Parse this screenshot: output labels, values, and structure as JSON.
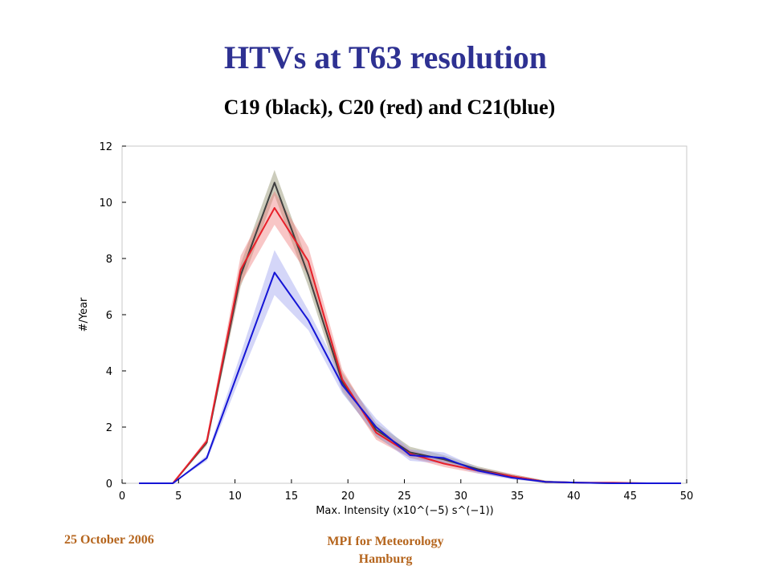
{
  "slide": {
    "title": "HTVs at T63 resolution",
    "subtitle": "C19 (black), C20 (red) and C21(blue)",
    "footer_date": "25 October 2006",
    "footer_org_line1": "MPI for Meteorology",
    "footer_org_line2": "Hamburg",
    "title_color": "#2e3192",
    "footer_color": "#b5651d"
  },
  "chart_data": {
    "type": "line",
    "title": "",
    "xlabel": "Max. Intensity (x10^(−5) s^(−1))",
    "ylabel": "#/Year",
    "xlim": [
      0,
      50
    ],
    "ylim": [
      0,
      12
    ],
    "xticks": [
      0,
      5,
      10,
      15,
      20,
      25,
      30,
      35,
      40,
      45,
      50
    ],
    "yticks": [
      0,
      2,
      4,
      6,
      8,
      10,
      12
    ],
    "grid": false,
    "x": [
      1.5,
      4.5,
      7.5,
      10.5,
      13.5,
      16.5,
      19.5,
      22.5,
      25.5,
      28.5,
      31.5,
      34.5,
      37.5,
      40.5,
      43.5,
      46.5,
      49.5
    ],
    "series": [
      {
        "color": "#404040",
        "band_color": "#8e8e6a",
        "values": [
          0,
          0,
          1.45,
          7.4,
          10.7,
          7.4,
          3.6,
          1.9,
          1.1,
          0.85,
          0.5,
          0.25,
          0.05,
          0.02,
          0.0,
          0.0,
          0.0
        ],
        "spread": [
          0,
          0,
          0.1,
          0.4,
          0.45,
          0.4,
          0.35,
          0.25,
          0.2,
          0.15,
          0.1,
          0.08,
          0.05,
          0.02,
          0.0,
          0.0,
          0.0
        ]
      },
      {
        "color": "#e8202a",
        "band_color": "#f08080",
        "values": [
          0,
          0,
          1.5,
          7.6,
          9.8,
          7.9,
          3.7,
          1.8,
          1.05,
          0.7,
          0.45,
          0.25,
          0.05,
          0.02,
          0.02,
          0.0,
          0.0
        ],
        "spread": [
          0,
          0,
          0.1,
          0.5,
          0.6,
          0.5,
          0.35,
          0.25,
          0.15,
          0.12,
          0.1,
          0.08,
          0.04,
          0.02,
          0.01,
          0.0,
          0.0
        ]
      },
      {
        "color": "#1515d6",
        "band_color": "#9fa3f0",
        "values": [
          0,
          0,
          0.9,
          4.2,
          7.5,
          5.8,
          3.5,
          2.0,
          1.0,
          0.9,
          0.45,
          0.2,
          0.05,
          0.02,
          0.0,
          0.0,
          0.0
        ],
        "spread": [
          0,
          0,
          0.1,
          0.4,
          0.8,
          0.35,
          0.3,
          0.3,
          0.2,
          0.2,
          0.1,
          0.06,
          0.03,
          0.01,
          0.0,
          0.0,
          0.0
        ]
      }
    ]
  }
}
